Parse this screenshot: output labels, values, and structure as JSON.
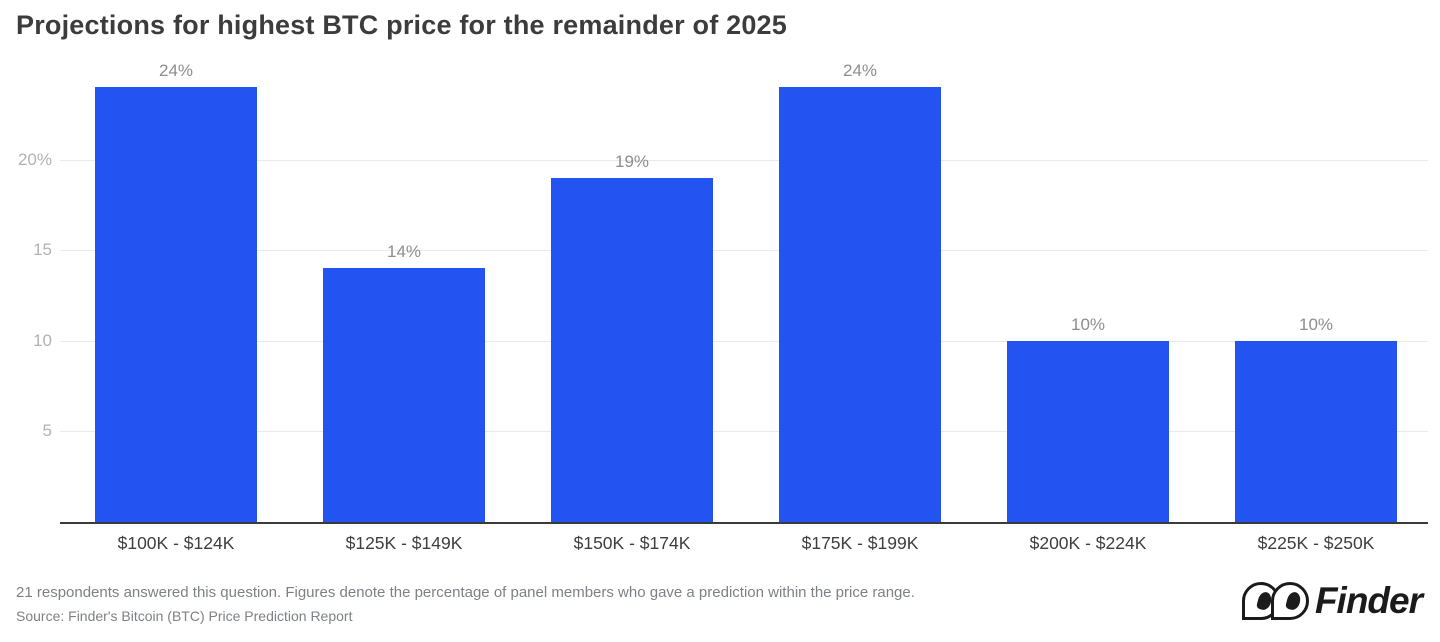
{
  "title": "Projections for highest BTC price for the remainder of 2025",
  "chart_data": {
    "type": "bar",
    "title": "Projections for highest BTC price for the remainder of 2025",
    "categories": [
      "$100K - $124K",
      "$125K - $149K",
      "$150K - $174K",
      "$175K - $199K",
      "$200K - $224K",
      "$225K - $250K"
    ],
    "values": [
      24,
      14,
      19,
      24,
      10,
      10
    ],
    "value_labels": [
      "24%",
      "14%",
      "19%",
      "24%",
      "10%",
      "10%"
    ],
    "xlabel": "",
    "ylabel": "",
    "ylim": [
      0,
      24
    ],
    "yticks": [
      5,
      10,
      15,
      20
    ],
    "ytick_labels": [
      "5",
      "10",
      "15",
      "20%"
    ],
    "grid": true,
    "legend": "none",
    "bar_color": "#2353f0"
  },
  "footer": {
    "note": "21 respondents answered this question. Figures denote the percentage of panel members who gave a prediction within the price range.",
    "source": "Source: Finder's Bitcoin (BTC) Price Prediction Report"
  },
  "logo": {
    "text": "Finder"
  },
  "colors": {
    "bar": "#2353f0",
    "title_text": "#3c3c3c",
    "ytick_text": "#b2b2b5",
    "xtick_text": "#3e3e3e",
    "value_label_text": "#8d8d90",
    "gridline": "#e9e9ea",
    "axis_line": "#3a3a3a",
    "footnote_text": "#7d8186",
    "logo_ink": "#1b1b1b"
  }
}
